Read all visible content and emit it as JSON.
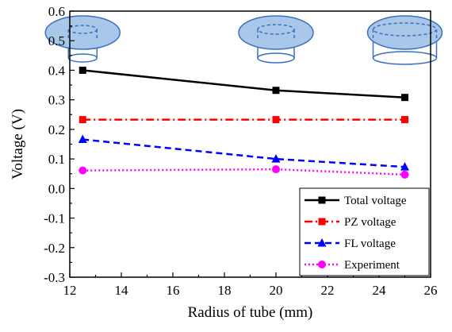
{
  "chart_data": {
    "type": "line",
    "xlabel": "Radius of tube (mm)",
    "ylabel": "Voltage (V)",
    "xlim": [
      12,
      26
    ],
    "ylim": [
      -0.3,
      0.6
    ],
    "xticks": [
      "12",
      "14",
      "16",
      "18",
      "20",
      "22",
      "24",
      "26"
    ],
    "yticks": [
      "-0.3",
      "-0.2",
      "-0.1",
      "0.0",
      "0.1",
      "0.2",
      "0.3",
      "0.4",
      "0.5",
      "0.6"
    ],
    "grid": false,
    "legend_position": "bottom-right",
    "series": [
      {
        "name": "Total voltage",
        "x": [
          12.5,
          20,
          25
        ],
        "y": [
          0.4,
          0.332,
          0.308
        ],
        "color": "#000000",
        "dash": "solid",
        "marker": "square"
      },
      {
        "name": "PZ voltage",
        "x": [
          12.5,
          20,
          25
        ],
        "y": [
          0.233,
          0.233,
          0.233
        ],
        "color": "#ff0000",
        "dash": "dashdot",
        "marker": "square"
      },
      {
        "name": "FL voltage",
        "x": [
          12.5,
          20,
          25
        ],
        "y": [
          0.166,
          0.1,
          0.073
        ],
        "color": "#0000ff",
        "dash": "dash",
        "marker": "triangle"
      },
      {
        "name": "Experiment",
        "x": [
          12.5,
          20,
          25
        ],
        "y": [
          0.061,
          0.065,
          0.047
        ],
        "color": "#ff00ff",
        "dash": "dot",
        "marker": "circle"
      }
    ],
    "insets": [
      {
        "x": 12.5,
        "icon": "tube-small-radius-icon"
      },
      {
        "x": 20,
        "icon": "tube-medium-radius-icon"
      },
      {
        "x": 25,
        "icon": "tube-large-radius-icon"
      }
    ]
  }
}
